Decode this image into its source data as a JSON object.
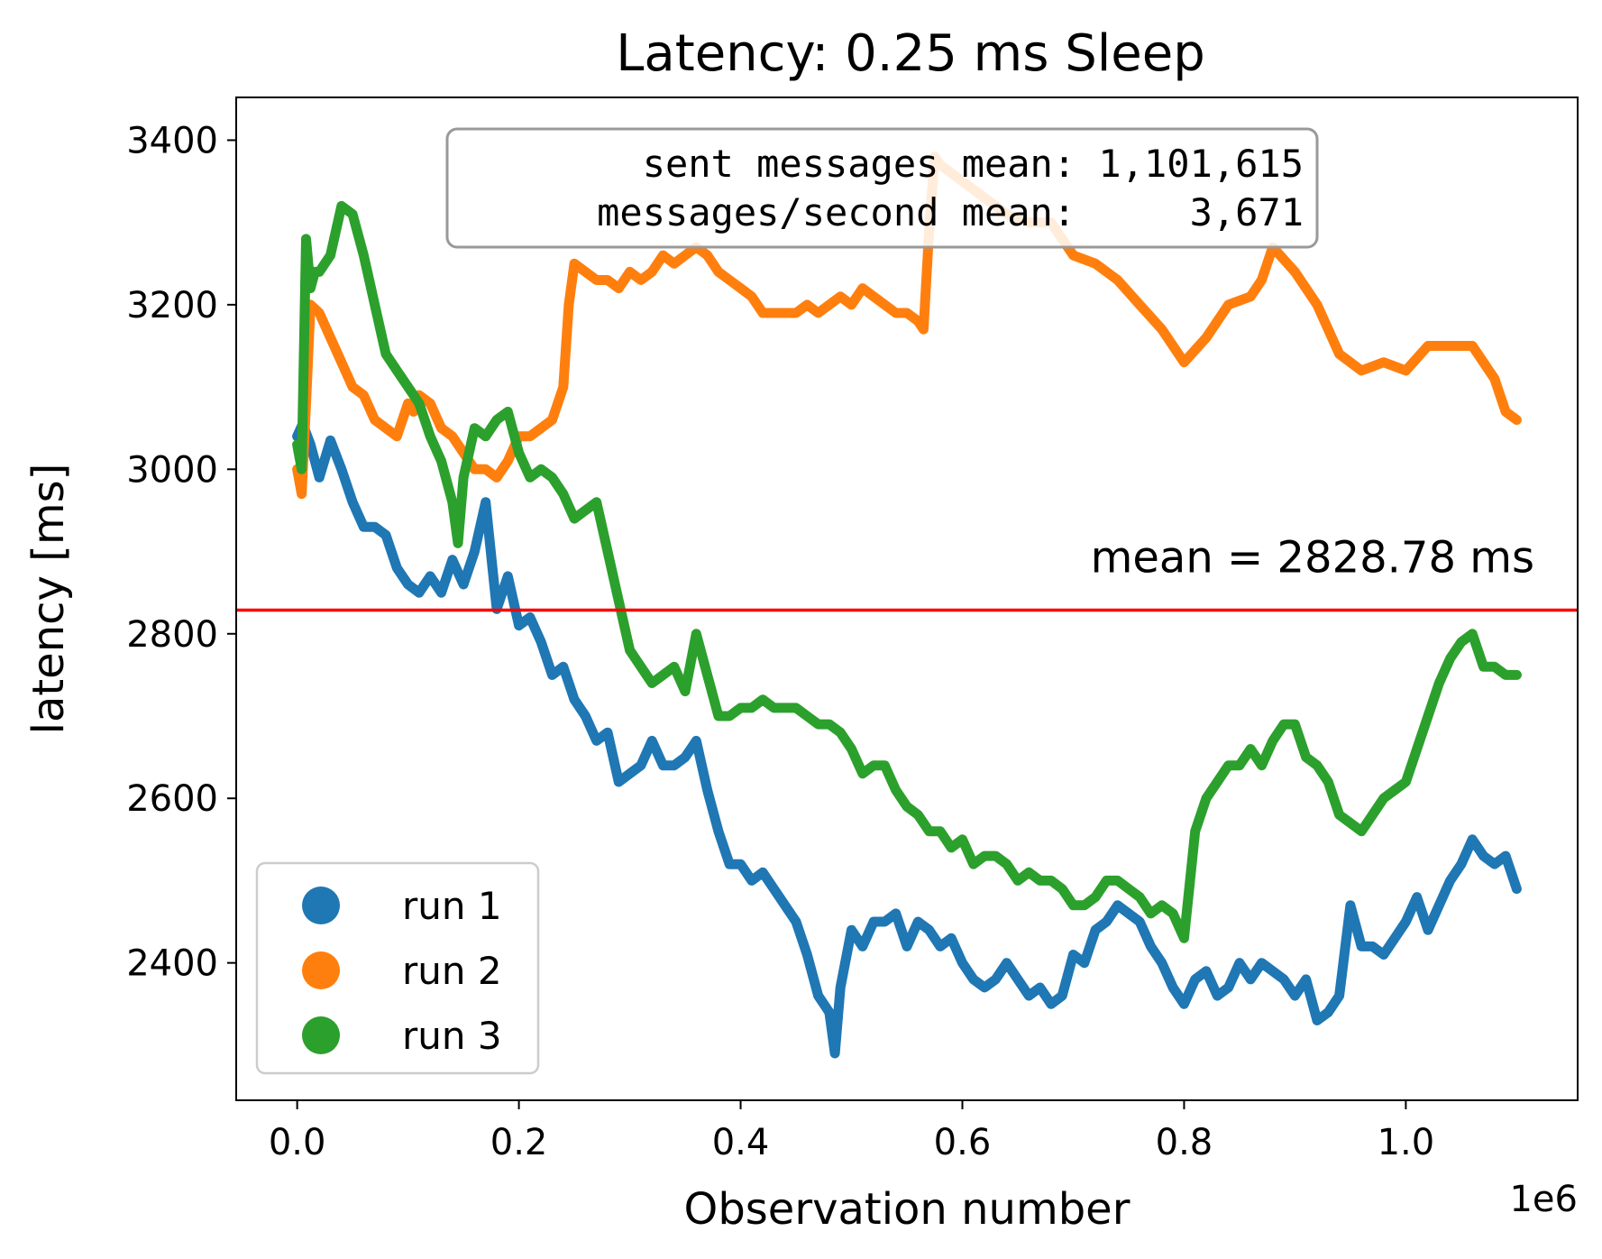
{
  "chart_data": {
    "type": "line",
    "title": "Latency: 0.25 ms Sleep",
    "xlabel": "Observation number",
    "ylabel": "latency [ms]",
    "x_offset_label": "1e6",
    "xlim": [
      -0.055,
      1.155
    ],
    "ylim": [
      2233,
      3452
    ],
    "x_ticks": [
      0.0,
      0.2,
      0.4,
      0.6,
      0.8,
      1.0
    ],
    "x_tick_labels": [
      "0.0",
      "0.2",
      "0.4",
      "0.6",
      "0.8",
      "1.0"
    ],
    "y_ticks": [
      2400,
      2600,
      2800,
      3000,
      3200,
      3400
    ],
    "y_tick_labels": [
      "2400",
      "2600",
      "2800",
      "3000",
      "3200",
      "3400"
    ],
    "grid": false,
    "legend_position": "lower-left",
    "mean_line": {
      "value": 2828.78,
      "label": "mean = 2828.78 ms",
      "color": "#ff0000"
    },
    "stats_box": {
      "lines": [
        "  sent messages mean: 1,101,615",
        "messages/second mean:     3,671"
      ]
    },
    "series": [
      {
        "name": "run 1",
        "color": "#1f77b4",
        "x": [
          0.0,
          0.005,
          0.012,
          0.02,
          0.03,
          0.04,
          0.05,
          0.06,
          0.07,
          0.08,
          0.09,
          0.1,
          0.11,
          0.12,
          0.13,
          0.14,
          0.15,
          0.16,
          0.17,
          0.18,
          0.19,
          0.2,
          0.21,
          0.22,
          0.23,
          0.24,
          0.25,
          0.26,
          0.27,
          0.28,
          0.29,
          0.3,
          0.31,
          0.32,
          0.33,
          0.34,
          0.35,
          0.36,
          0.37,
          0.38,
          0.39,
          0.4,
          0.41,
          0.42,
          0.43,
          0.44,
          0.45,
          0.46,
          0.47,
          0.48,
          0.485,
          0.49,
          0.5,
          0.51,
          0.52,
          0.53,
          0.54,
          0.55,
          0.56,
          0.57,
          0.58,
          0.59,
          0.6,
          0.61,
          0.62,
          0.63,
          0.64,
          0.65,
          0.66,
          0.67,
          0.68,
          0.69,
          0.7,
          0.71,
          0.72,
          0.73,
          0.74,
          0.75,
          0.76,
          0.77,
          0.78,
          0.79,
          0.8,
          0.81,
          0.82,
          0.83,
          0.84,
          0.85,
          0.86,
          0.87,
          0.88,
          0.89,
          0.9,
          0.91,
          0.92,
          0.93,
          0.94,
          0.95,
          0.96,
          0.97,
          0.98,
          0.99,
          1.0,
          1.01,
          1.02,
          1.03,
          1.04,
          1.05,
          1.06,
          1.07,
          1.08,
          1.09,
          1.1
        ],
        "values": [
          3040,
          3055,
          3030,
          2990,
          3035,
          3000,
          2960,
          2930,
          2930,
          2920,
          2880,
          2860,
          2850,
          2870,
          2850,
          2890,
          2860,
          2900,
          2960,
          2830,
          2870,
          2810,
          2820,
          2790,
          2750,
          2760,
          2720,
          2700,
          2670,
          2680,
          2620,
          2630,
          2640,
          2670,
          2640,
          2640,
          2650,
          2670,
          2610,
          2560,
          2520,
          2520,
          2500,
          2510,
          2490,
          2470,
          2450,
          2410,
          2360,
          2340,
          2290,
          2370,
          2440,
          2420,
          2450,
          2450,
          2460,
          2420,
          2450,
          2440,
          2420,
          2430,
          2400,
          2380,
          2370,
          2380,
          2400,
          2380,
          2360,
          2370,
          2350,
          2360,
          2410,
          2400,
          2440,
          2450,
          2470,
          2460,
          2450,
          2420,
          2400,
          2370,
          2350,
          2380,
          2390,
          2360,
          2370,
          2400,
          2380,
          2400,
          2390,
          2380,
          2360,
          2380,
          2330,
          2340,
          2360,
          2470,
          2420,
          2420,
          2410,
          2430,
          2450,
          2480,
          2440,
          2470,
          2500,
          2520,
          2550,
          2530,
          2520,
          2530,
          2490
        ]
      },
      {
        "name": "run 2",
        "color": "#ff7f0e",
        "x": [
          0.0,
          0.004,
          0.008,
          0.012,
          0.02,
          0.03,
          0.04,
          0.05,
          0.06,
          0.07,
          0.08,
          0.09,
          0.1,
          0.105,
          0.11,
          0.12,
          0.13,
          0.14,
          0.15,
          0.16,
          0.17,
          0.18,
          0.19,
          0.2,
          0.21,
          0.22,
          0.23,
          0.24,
          0.245,
          0.25,
          0.26,
          0.27,
          0.28,
          0.29,
          0.3,
          0.31,
          0.32,
          0.33,
          0.34,
          0.35,
          0.36,
          0.37,
          0.38,
          0.39,
          0.4,
          0.41,
          0.42,
          0.43,
          0.44,
          0.45,
          0.46,
          0.47,
          0.48,
          0.49,
          0.5,
          0.51,
          0.52,
          0.53,
          0.54,
          0.55,
          0.56,
          0.565,
          0.57,
          0.575,
          0.58,
          0.6,
          0.62,
          0.64,
          0.66,
          0.68,
          0.7,
          0.72,
          0.74,
          0.76,
          0.78,
          0.8,
          0.82,
          0.84,
          0.86,
          0.87,
          0.88,
          0.9,
          0.92,
          0.94,
          0.96,
          0.98,
          1.0,
          1.02,
          1.04,
          1.06,
          1.08,
          1.09,
          1.1
        ],
        "values": [
          3000,
          2970,
          3080,
          3200,
          3190,
          3160,
          3130,
          3100,
          3090,
          3060,
          3050,
          3040,
          3080,
          3070,
          3090,
          3080,
          3050,
          3040,
          3020,
          3000,
          3000,
          2990,
          3010,
          3040,
          3040,
          3050,
          3060,
          3100,
          3200,
          3250,
          3240,
          3230,
          3230,
          3220,
          3240,
          3230,
          3240,
          3260,
          3250,
          3260,
          3270,
          3260,
          3240,
          3230,
          3220,
          3210,
          3190,
          3190,
          3190,
          3190,
          3200,
          3190,
          3200,
          3210,
          3200,
          3220,
          3210,
          3200,
          3190,
          3190,
          3180,
          3170,
          3290,
          3380,
          3370,
          3350,
          3330,
          3310,
          3300,
          3300,
          3260,
          3250,
          3230,
          3200,
          3170,
          3130,
          3160,
          3200,
          3210,
          3230,
          3270,
          3240,
          3200,
          3140,
          3120,
          3130,
          3120,
          3150,
          3150,
          3150,
          3110,
          3070,
          3060
        ]
      },
      {
        "name": "run 3",
        "color": "#2ca02c",
        "x": [
          0.0,
          0.004,
          0.008,
          0.012,
          0.016,
          0.02,
          0.03,
          0.04,
          0.05,
          0.06,
          0.07,
          0.08,
          0.09,
          0.1,
          0.11,
          0.12,
          0.13,
          0.14,
          0.145,
          0.15,
          0.16,
          0.17,
          0.18,
          0.19,
          0.2,
          0.21,
          0.22,
          0.23,
          0.24,
          0.25,
          0.26,
          0.27,
          0.28,
          0.29,
          0.3,
          0.31,
          0.32,
          0.33,
          0.34,
          0.35,
          0.36,
          0.37,
          0.38,
          0.39,
          0.4,
          0.41,
          0.42,
          0.43,
          0.44,
          0.45,
          0.46,
          0.47,
          0.48,
          0.49,
          0.5,
          0.51,
          0.52,
          0.53,
          0.54,
          0.55,
          0.56,
          0.57,
          0.58,
          0.59,
          0.6,
          0.61,
          0.62,
          0.63,
          0.64,
          0.65,
          0.66,
          0.67,
          0.68,
          0.69,
          0.7,
          0.71,
          0.72,
          0.73,
          0.74,
          0.75,
          0.76,
          0.77,
          0.78,
          0.79,
          0.8,
          0.81,
          0.82,
          0.83,
          0.84,
          0.85,
          0.86,
          0.87,
          0.88,
          0.89,
          0.9,
          0.91,
          0.92,
          0.93,
          0.94,
          0.95,
          0.96,
          0.97,
          0.98,
          0.99,
          1.0,
          1.01,
          1.02,
          1.03,
          1.04,
          1.05,
          1.06,
          1.07,
          1.08,
          1.09,
          1.1
        ],
        "values": [
          3030,
          3000,
          3280,
          3220,
          3240,
          3240,
          3260,
          3320,
          3310,
          3260,
          3200,
          3140,
          3120,
          3100,
          3080,
          3040,
          3010,
          2960,
          2910,
          2990,
          3050,
          3040,
          3060,
          3070,
          3020,
          2990,
          3000,
          2990,
          2970,
          2940,
          2950,
          2960,
          2900,
          2840,
          2780,
          2760,
          2740,
          2750,
          2760,
          2730,
          2800,
          2750,
          2700,
          2700,
          2710,
          2710,
          2720,
          2710,
          2710,
          2710,
          2700,
          2690,
          2690,
          2680,
          2660,
          2630,
          2640,
          2640,
          2610,
          2590,
          2580,
          2560,
          2560,
          2540,
          2550,
          2520,
          2530,
          2530,
          2520,
          2500,
          2510,
          2500,
          2500,
          2490,
          2470,
          2470,
          2480,
          2500,
          2500,
          2490,
          2480,
          2460,
          2470,
          2460,
          2430,
          2560,
          2600,
          2620,
          2640,
          2640,
          2660,
          2640,
          2670,
          2690,
          2690,
          2650,
          2640,
          2620,
          2580,
          2570,
          2560,
          2580,
          2600,
          2610,
          2620,
          2660,
          2700,
          2740,
          2770,
          2790,
          2800,
          2760,
          2760,
          2750,
          2750
        ]
      }
    ]
  }
}
